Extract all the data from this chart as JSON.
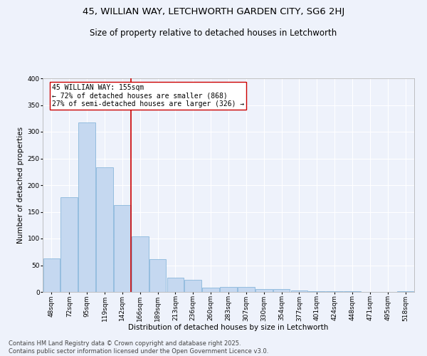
{
  "title1": "45, WILLIAN WAY, LETCHWORTH GARDEN CITY, SG6 2HJ",
  "title2": "Size of property relative to detached houses in Letchworth",
  "xlabel": "Distribution of detached houses by size in Letchworth",
  "ylabel": "Number of detached properties",
  "bar_color": "#c5d8f0",
  "bar_edge_color": "#7aaed6",
  "categories": [
    "48sqm",
    "72sqm",
    "95sqm",
    "119sqm",
    "142sqm",
    "166sqm",
    "189sqm",
    "213sqm",
    "236sqm",
    "260sqm",
    "283sqm",
    "307sqm",
    "330sqm",
    "354sqm",
    "377sqm",
    "401sqm",
    "424sqm",
    "448sqm",
    "471sqm",
    "495sqm",
    "518sqm"
  ],
  "values": [
    63,
    178,
    318,
    233,
    163,
    104,
    62,
    27,
    23,
    8,
    10,
    10,
    5,
    5,
    3,
    1,
    1,
    1,
    0,
    0,
    2
  ],
  "vline_x": 4.5,
  "vline_color": "#cc0000",
  "annotation_text": "45 WILLIAN WAY: 155sqm\n← 72% of detached houses are smaller (868)\n27% of semi-detached houses are larger (326) →",
  "annotation_box_color": "#ffffff",
  "annotation_box_edge_color": "#cc0000",
  "ylim": [
    0,
    400
  ],
  "yticks": [
    0,
    50,
    100,
    150,
    200,
    250,
    300,
    350,
    400
  ],
  "footer": "Contains HM Land Registry data © Crown copyright and database right 2025.\nContains public sector information licensed under the Open Government Licence v3.0.",
  "bg_color": "#eef2fb",
  "plot_bg_color": "#eef2fb",
  "grid_color": "#ffffff",
  "title_fontsize": 9.5,
  "subtitle_fontsize": 8.5,
  "axis_label_fontsize": 7.5,
  "tick_fontsize": 6.5,
  "annotation_fontsize": 7,
  "footer_fontsize": 6
}
